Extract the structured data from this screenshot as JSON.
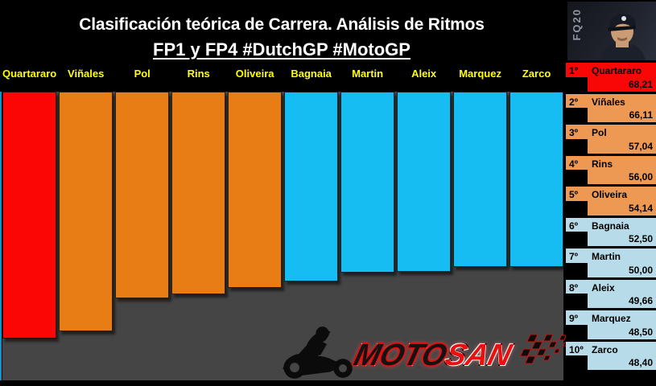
{
  "header": {
    "title": "Clasificación teórica de Carrera. Análisis de Ritmos",
    "subtitle": "FP1 y FP4 #DutchGP #MotoGP"
  },
  "photo": {
    "tag": "FQ20"
  },
  "logo": {
    "moto": "MOTO",
    "san": "SAN"
  },
  "colors": {
    "bar_red": "#fb0505",
    "bar_orange": "#e87d15",
    "bar_blue": "#16bdf2",
    "label_red": "#f90606",
    "label_orange": "#ed9853",
    "label_blue": "#b7dbe8",
    "plot_bg": "#454545",
    "name_yellow": "#ffff00"
  },
  "chart_data": {
    "type": "bar",
    "title": "Clasificación teórica de Carrera. Análisis de Ritmos",
    "subtitle": "FP1 y FP4 #DutchGP #MotoGP",
    "orientation": "columns-hanging-from-top",
    "categories": [
      "Quartararo",
      "Viñales",
      "Pol",
      "Rins",
      "Oliveira",
      "Bagnaia",
      "Martin",
      "Aleix",
      "Marquez",
      "Zarco"
    ],
    "values": [
      68.21,
      66.11,
      57.04,
      56.0,
      54.14,
      52.5,
      50.0,
      49.66,
      48.5,
      48.4
    ],
    "display_values": [
      "68,21",
      "66,11",
      "57,04",
      "56,00",
      "54,14",
      "52,50",
      "50,00",
      "49,66",
      "48,50",
      "48,40"
    ],
    "ranks": [
      "1º",
      "2º",
      "3º",
      "4º",
      "5º",
      "6º",
      "7º",
      "8º",
      "9º",
      "10º"
    ],
    "bar_colors": [
      "bar_red",
      "bar_orange",
      "bar_orange",
      "bar_orange",
      "bar_orange",
      "bar_blue",
      "bar_blue",
      "bar_blue",
      "bar_blue",
      "bar_blue"
    ],
    "ylim": [
      0,
      68.21
    ],
    "grid": false,
    "legend": false
  },
  "sidebar": {
    "items": [
      {
        "rank": "1º",
        "name": "Quartararo",
        "value": "68,21",
        "color": "label_red"
      },
      {
        "rank": "2º",
        "name": "Viñales",
        "value": "66,11",
        "color": "label_orange"
      },
      {
        "rank": "3º",
        "name": "Pol",
        "value": "57,04",
        "color": "label_orange"
      },
      {
        "rank": "4º",
        "name": "Rins",
        "value": "56,00",
        "color": "label_orange"
      },
      {
        "rank": "5º",
        "name": "Oliveira",
        "value": "54,14",
        "color": "label_orange"
      },
      {
        "rank": "6º",
        "name": "Bagnaia",
        "value": "52,50",
        "color": "label_blue"
      },
      {
        "rank": "7º",
        "name": "Martin",
        "value": "50,00",
        "color": "label_blue"
      },
      {
        "rank": "8º",
        "name": "Aleix",
        "value": "49,66",
        "color": "label_blue"
      },
      {
        "rank": "9º",
        "name": "Marquez",
        "value": "48,50",
        "color": "label_blue"
      },
      {
        "rank": "10º",
        "name": "Zarco",
        "value": "48,40",
        "color": "label_blue"
      }
    ]
  }
}
